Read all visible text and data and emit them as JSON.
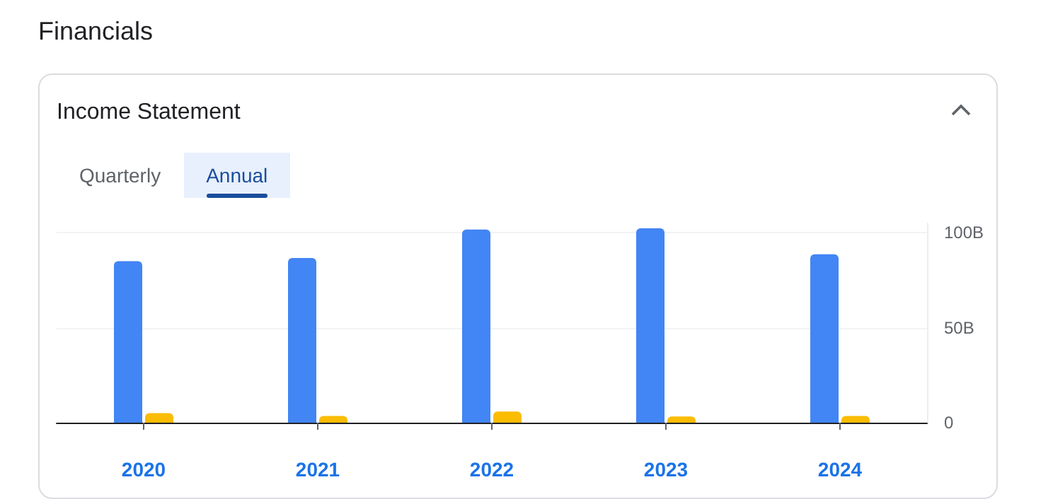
{
  "chart_data": {
    "type": "bar",
    "title": "Financials",
    "subtitle": "Income Statement",
    "annotations": [
      "Quarterly",
      "Annual"
    ],
    "categories": [
      "2020",
      "2021",
      "2022",
      "2023",
      "2024"
    ],
    "series": [
      {
        "color": "#4285f4",
        "values": [
          85.1,
          86.8,
          101.7,
          102.4,
          88.7
        ]
      },
      {
        "color": "#fbbc04",
        "values": [
          5.0,
          3.5,
          5.9,
          3.3,
          3.5
        ]
      }
    ],
    "ylim": [
      0,
      105
    ],
    "yticks": [
      0,
      {
        "value": 50,
        "label": "50B"
      },
      {
        "value": 100,
        "label": "100B"
      }
    ],
    "grid": "y"
  }
}
